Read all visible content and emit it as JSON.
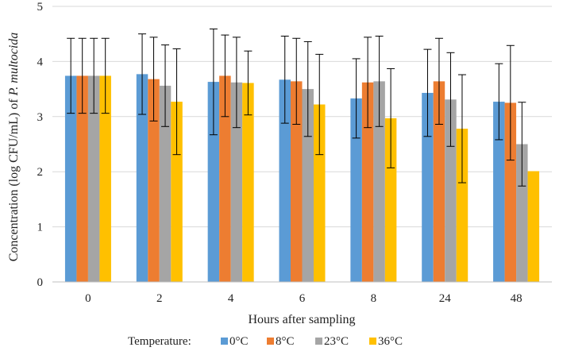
{
  "chart_data": {
    "type": "bar",
    "title": "",
    "xlabel": "Hours after sampling",
    "ylabel_prefix": "Concentration (log CFU/mL) of ",
    "ylabel_species": "P. multocida",
    "ylim": [
      0,
      5
    ],
    "yticks": [
      0,
      1,
      2,
      3,
      4,
      5
    ],
    "grid": true,
    "legend_title": "Temperature:",
    "legend_position": "bottom",
    "categories": [
      "0",
      "2",
      "4",
      "6",
      "8",
      "24",
      "48"
    ],
    "series": [
      {
        "name": "0°C",
        "color": "#5b9bd5",
        "values": [
          3.74,
          3.77,
          3.63,
          3.67,
          3.33,
          3.43,
          3.27
        ],
        "errors": [
          0.68,
          0.73,
          0.96,
          0.79,
          0.72,
          0.79,
          0.69
        ]
      },
      {
        "name": "8°C",
        "color": "#ed7d31",
        "values": [
          3.74,
          3.68,
          3.74,
          3.64,
          3.62,
          3.64,
          3.25
        ],
        "errors": [
          0.68,
          0.76,
          0.74,
          0.78,
          0.82,
          0.78,
          1.04
        ]
      },
      {
        "name": "23°C",
        "color": "#a5a5a5",
        "values": [
          3.74,
          3.56,
          3.62,
          3.5,
          3.64,
          3.31,
          2.5
        ],
        "errors": [
          0.68,
          0.74,
          0.82,
          0.86,
          0.82,
          0.85,
          0.76
        ]
      },
      {
        "name": "36°C",
        "color": "#ffc000",
        "values": [
          3.74,
          3.27,
          3.61,
          3.22,
          2.97,
          2.78,
          2.01
        ],
        "errors": [
          0.68,
          0.96,
          0.58,
          0.91,
          0.9,
          0.98,
          0.0
        ]
      }
    ]
  }
}
